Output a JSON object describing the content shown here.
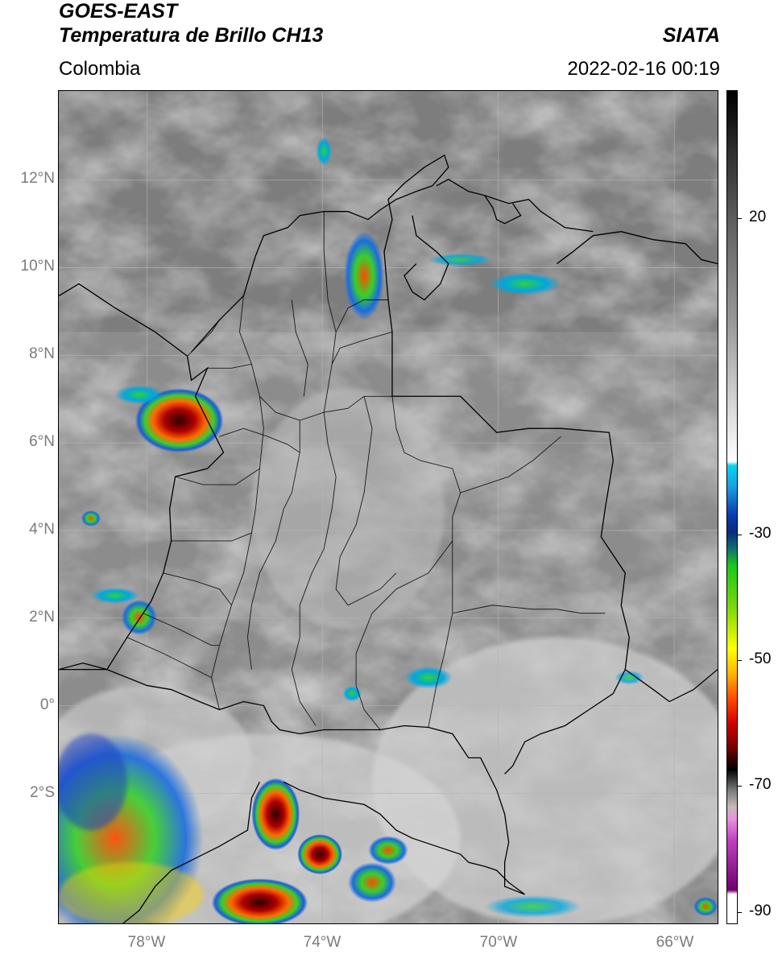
{
  "header": {
    "line1": "GOES-EAST",
    "line2": "Temperatura de Brillo CH13",
    "region": "Colombia",
    "source": "SIATA",
    "datetime": "2022-02-16 00:19"
  },
  "map": {
    "lat_ticks": [
      {
        "label": "12°N",
        "value": 12
      },
      {
        "label": "10°N",
        "value": 10
      },
      {
        "label": "8°N",
        "value": 8
      },
      {
        "label": "6°N",
        "value": 6
      },
      {
        "label": "4°N",
        "value": 4
      },
      {
        "label": "2°N",
        "value": 2
      },
      {
        "label": "0°",
        "value": 0
      },
      {
        "label": "2°S",
        "value": -2
      }
    ],
    "lon_ticks": [
      {
        "label": "78°W",
        "value": -78
      },
      {
        "label": "74°W",
        "value": -74
      },
      {
        "label": "70°W",
        "value": -70
      },
      {
        "label": "66°W",
        "value": -66
      }
    ],
    "extent": {
      "lon_min": -80,
      "lon_max": -65,
      "lat_min": -5,
      "lat_max": 14
    }
  },
  "colorbar": {
    "ticks": [
      {
        "label": "20",
        "value": 20
      },
      {
        "label": "-30",
        "value": -30
      },
      {
        "label": "-50",
        "value": -50
      },
      {
        "label": "-70",
        "value": -70
      },
      {
        "label": "-90",
        "value": -90
      }
    ],
    "range": [
      -93,
      40
    ]
  }
}
